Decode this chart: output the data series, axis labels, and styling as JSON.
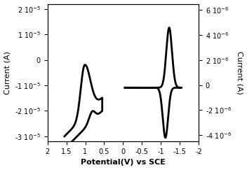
{
  "xlim": [
    2,
    -2
  ],
  "left_ylim": [
    -3.2e-05,
    2.2e-05
  ],
  "right_ylim": [
    -4.5e-06,
    6.5e-06
  ],
  "left_yticks": [
    -3e-05,
    -2e-05,
    -1e-05,
    0,
    1e-05,
    2e-05
  ],
  "right_yticks": [
    -4e-06,
    -2e-06,
    0,
    2e-06,
    4e-06,
    6e-06
  ],
  "xticks": [
    2,
    1.5,
    1.0,
    0.5,
    0,
    -0.5,
    -1.0,
    -1.5,
    -2
  ],
  "xtick_labels": [
    "2",
    "1.5",
    "1",
    "0.5",
    "0",
    "-0.5",
    "-1",
    "-1.5",
    "-2"
  ],
  "xlabel": "Potential(V) vs SCE",
  "left_ylabel": "Current (A)",
  "right_ylabel": "Current (A)",
  "line_color": "black",
  "line_width": 2.0,
  "figsize": [
    3.52,
    2.43
  ],
  "dpi": 100
}
